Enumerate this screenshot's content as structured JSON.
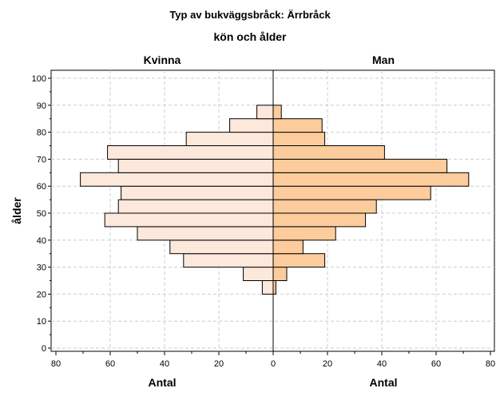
{
  "chart_data": {
    "type": "bar",
    "orientation": "population-pyramid",
    "title": "Typ av bukväggsbråck: Ärrbråck",
    "subtitle": "kön och ålder",
    "ylabel": "ålder",
    "xlabel_left": "Antal",
    "xlabel_right": "Antal",
    "xlim": [
      0,
      80
    ],
    "ylim": [
      0,
      100
    ],
    "x_ticks": [
      0,
      20,
      40,
      60,
      80
    ],
    "y_ticks": [
      0,
      10,
      20,
      30,
      40,
      50,
      60,
      70,
      80,
      90,
      100
    ],
    "grid": true,
    "categories": [
      20,
      25,
      30,
      35,
      40,
      45,
      50,
      55,
      60,
      65,
      70,
      75,
      80,
      85,
      90
    ],
    "series": [
      {
        "name": "Kvinna",
        "side": "left",
        "color": "#fde8dc",
        "values": [
          4,
          11,
          33,
          38,
          50,
          62,
          57,
          56,
          71,
          57,
          61,
          32,
          16,
          6,
          0
        ]
      },
      {
        "name": "Man",
        "side": "right",
        "color": "#fdcc9c",
        "values": [
          1,
          5,
          19,
          11,
          23,
          34,
          38,
          58,
          72,
          64,
          41,
          19,
          18,
          3,
          0
        ]
      }
    ]
  }
}
